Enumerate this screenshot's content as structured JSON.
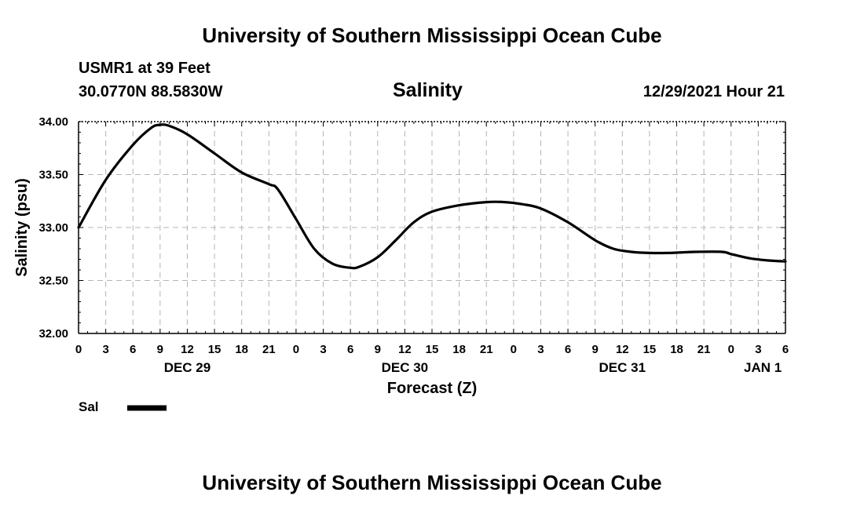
{
  "page": {
    "top_title": "University of Southern Mississippi Ocean Cube",
    "bottom_title": "University of Southern Mississippi Ocean Cube",
    "station": "USMR1 at 39 Feet",
    "coords": "30.0770N  88.5830W",
    "variable": "Salinity",
    "datetime": "12/29/2021 Hour 21"
  },
  "chart_data": {
    "type": "line",
    "title": "Salinity",
    "xlabel": "Forecast (Z)",
    "ylabel": "Salinity (psu)",
    "ylim": [
      32.0,
      34.0
    ],
    "y_ticks": [
      "32.00",
      "32.50",
      "33.00",
      "33.50",
      "34.00"
    ],
    "xlim": [
      0,
      78
    ],
    "x_ticks": [
      "0",
      "3",
      "6",
      "9",
      "12",
      "15",
      "18",
      "21",
      "0",
      "3",
      "6",
      "9",
      "12",
      "15",
      "18",
      "21",
      "0",
      "3",
      "6",
      "9",
      "12",
      "15",
      "18",
      "21",
      "0",
      "3",
      "6"
    ],
    "date_labels": [
      {
        "label": "DEC 29",
        "hour": 12
      },
      {
        "label": "DEC 30",
        "hour": 36
      },
      {
        "label": "DEC 31",
        "hour": 60
      },
      {
        "label": "JAN 1",
        "hour": 75.5
      }
    ],
    "grid": true,
    "legend": [
      {
        "name": "Sal",
        "color": "#000000"
      }
    ],
    "series": [
      {
        "name": "Sal",
        "color": "#000000",
        "x": [
          0,
          3,
          6,
          8,
          9,
          10,
          12,
          15,
          18,
          21,
          22,
          24,
          26,
          28,
          30,
          31,
          33,
          35,
          37,
          39,
          42,
          45,
          47,
          49,
          51,
          54,
          57,
          59,
          61,
          63,
          65,
          68,
          71,
          72,
          74,
          76,
          78
        ],
        "values": [
          33.0,
          33.45,
          33.78,
          33.94,
          33.97,
          33.96,
          33.88,
          33.7,
          33.52,
          33.41,
          33.36,
          33.08,
          32.8,
          32.66,
          32.62,
          32.63,
          32.72,
          32.88,
          33.05,
          33.15,
          33.21,
          33.24,
          33.24,
          33.22,
          33.18,
          33.05,
          32.88,
          32.8,
          32.77,
          32.76,
          32.76,
          32.77,
          32.77,
          32.75,
          32.71,
          32.69,
          32.68
        ]
      }
    ]
  }
}
